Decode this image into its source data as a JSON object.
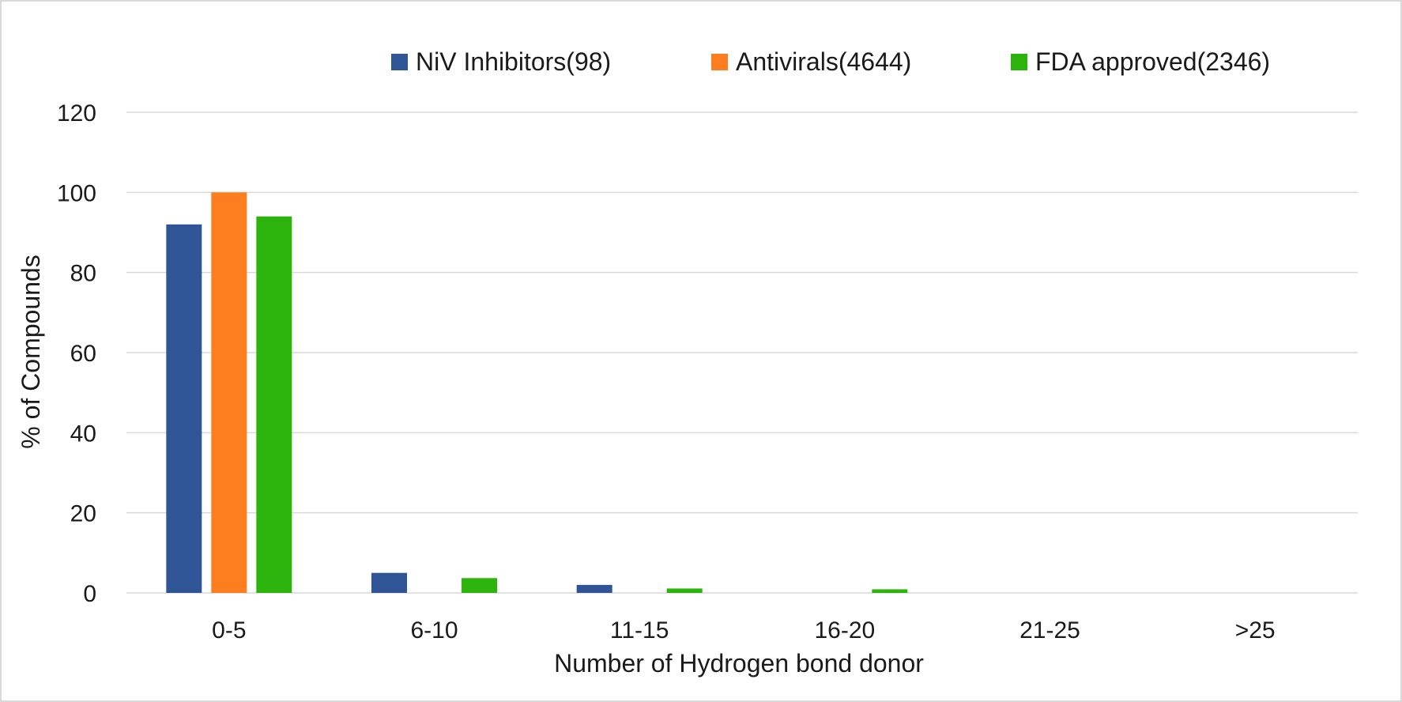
{
  "chart_data": {
    "type": "bar",
    "categories": [
      "0-5",
      "6-10",
      "11-15",
      "16-20",
      "21-25",
      ">25"
    ],
    "series": [
      {
        "name": "NiV Inhibitors(98)",
        "color": "#2f5597",
        "values": [
          92,
          5,
          2,
          0,
          0,
          0
        ]
      },
      {
        "name": "Antivirals(4644)",
        "color": "#fd7e1f",
        "values": [
          100,
          0,
          0,
          0,
          0,
          0
        ]
      },
      {
        "name": "FDA approved(2346)",
        "color": "#2db40c",
        "values": [
          94,
          3.7,
          1.1,
          0.9,
          0,
          0
        ]
      }
    ],
    "xlabel": "Number of Hydrogen bond donor",
    "ylabel": "% of Compounds",
    "ylim": [
      0,
      120
    ],
    "yticks": [
      0,
      20,
      40,
      60,
      80,
      100,
      120
    ],
    "grid": true,
    "legend_position": "top-center"
  }
}
